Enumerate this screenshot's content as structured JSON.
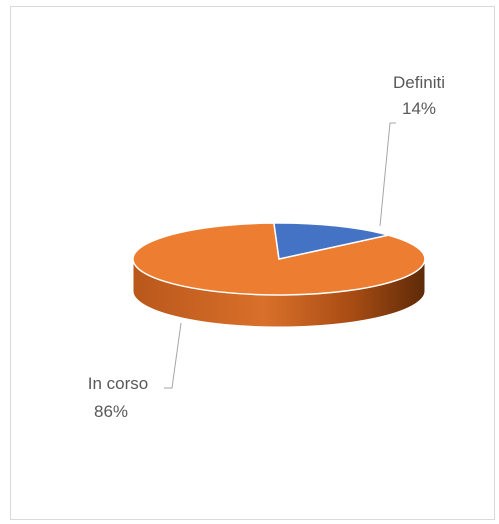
{
  "chart_data": {
    "type": "pie",
    "title": "",
    "style": "3d",
    "categories": [
      "Definiti",
      "In corso"
    ],
    "values": [
      14,
      86
    ],
    "labels": [
      {
        "name": "Definiti",
        "value": "14%"
      },
      {
        "name": "In corso",
        "value": "86%"
      }
    ],
    "colors": [
      "#4472c4",
      "#ed7d31"
    ],
    "legend": "none",
    "data_label_position": "outside-with-leader-lines"
  }
}
